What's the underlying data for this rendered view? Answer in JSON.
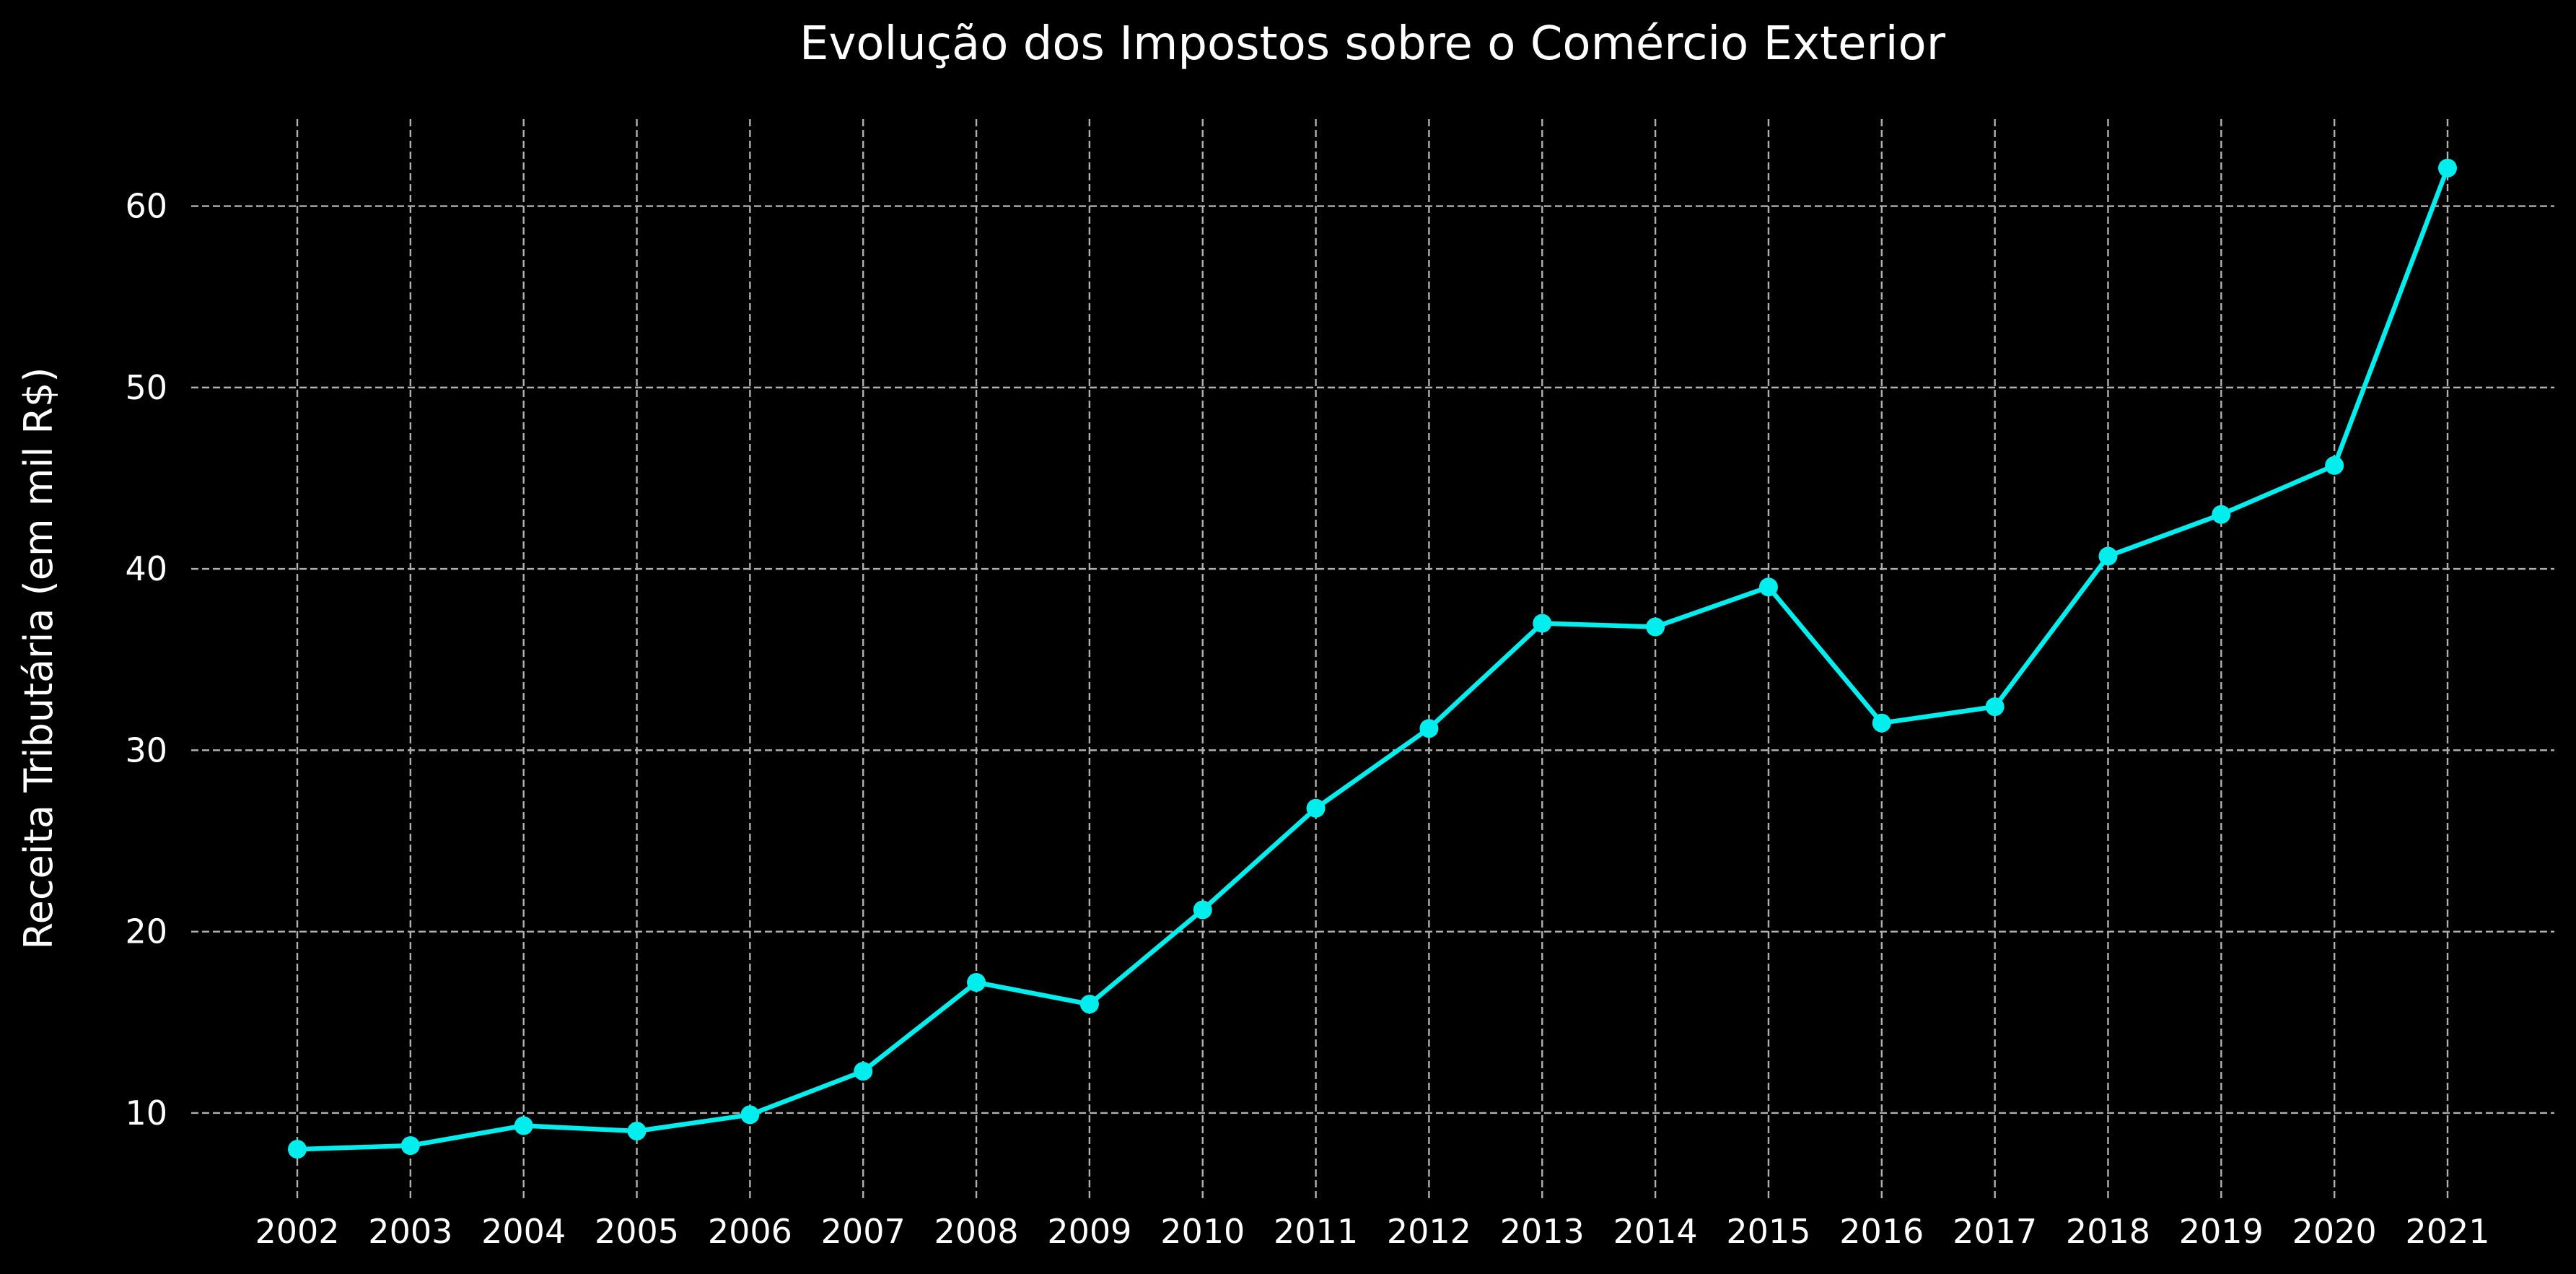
{
  "chart_data": {
    "type": "line",
    "title": "Evolução dos Impostos sobre o Comércio Exterior",
    "xlabel": "",
    "ylabel": "Receita Tributária (em mil R$)",
    "categories": [
      "2002",
      "2003",
      "2004",
      "2005",
      "2006",
      "2007",
      "2008",
      "2009",
      "2010",
      "2011",
      "2012",
      "2013",
      "2014",
      "2015",
      "2016",
      "2017",
      "2018",
      "2019",
      "2020",
      "2021"
    ],
    "series": [
      {
        "values": [
          8.0,
          8.2,
          9.3,
          9.0,
          9.9,
          12.3,
          17.2,
          16.0,
          21.2,
          26.8,
          31.2,
          37.0,
          36.8,
          39.0,
          31.5,
          32.4,
          40.7,
          43.0,
          45.7,
          62.1
        ],
        "color": "#00eeee"
      }
    ],
    "yticks": [
      10,
      20,
      30,
      40,
      50,
      60
    ],
    "ylim": [
      5.3,
      64.8
    ],
    "grid": true,
    "background": "#000000",
    "grid_color": "#b0b0b0",
    "text_color": "#ffffff"
  }
}
